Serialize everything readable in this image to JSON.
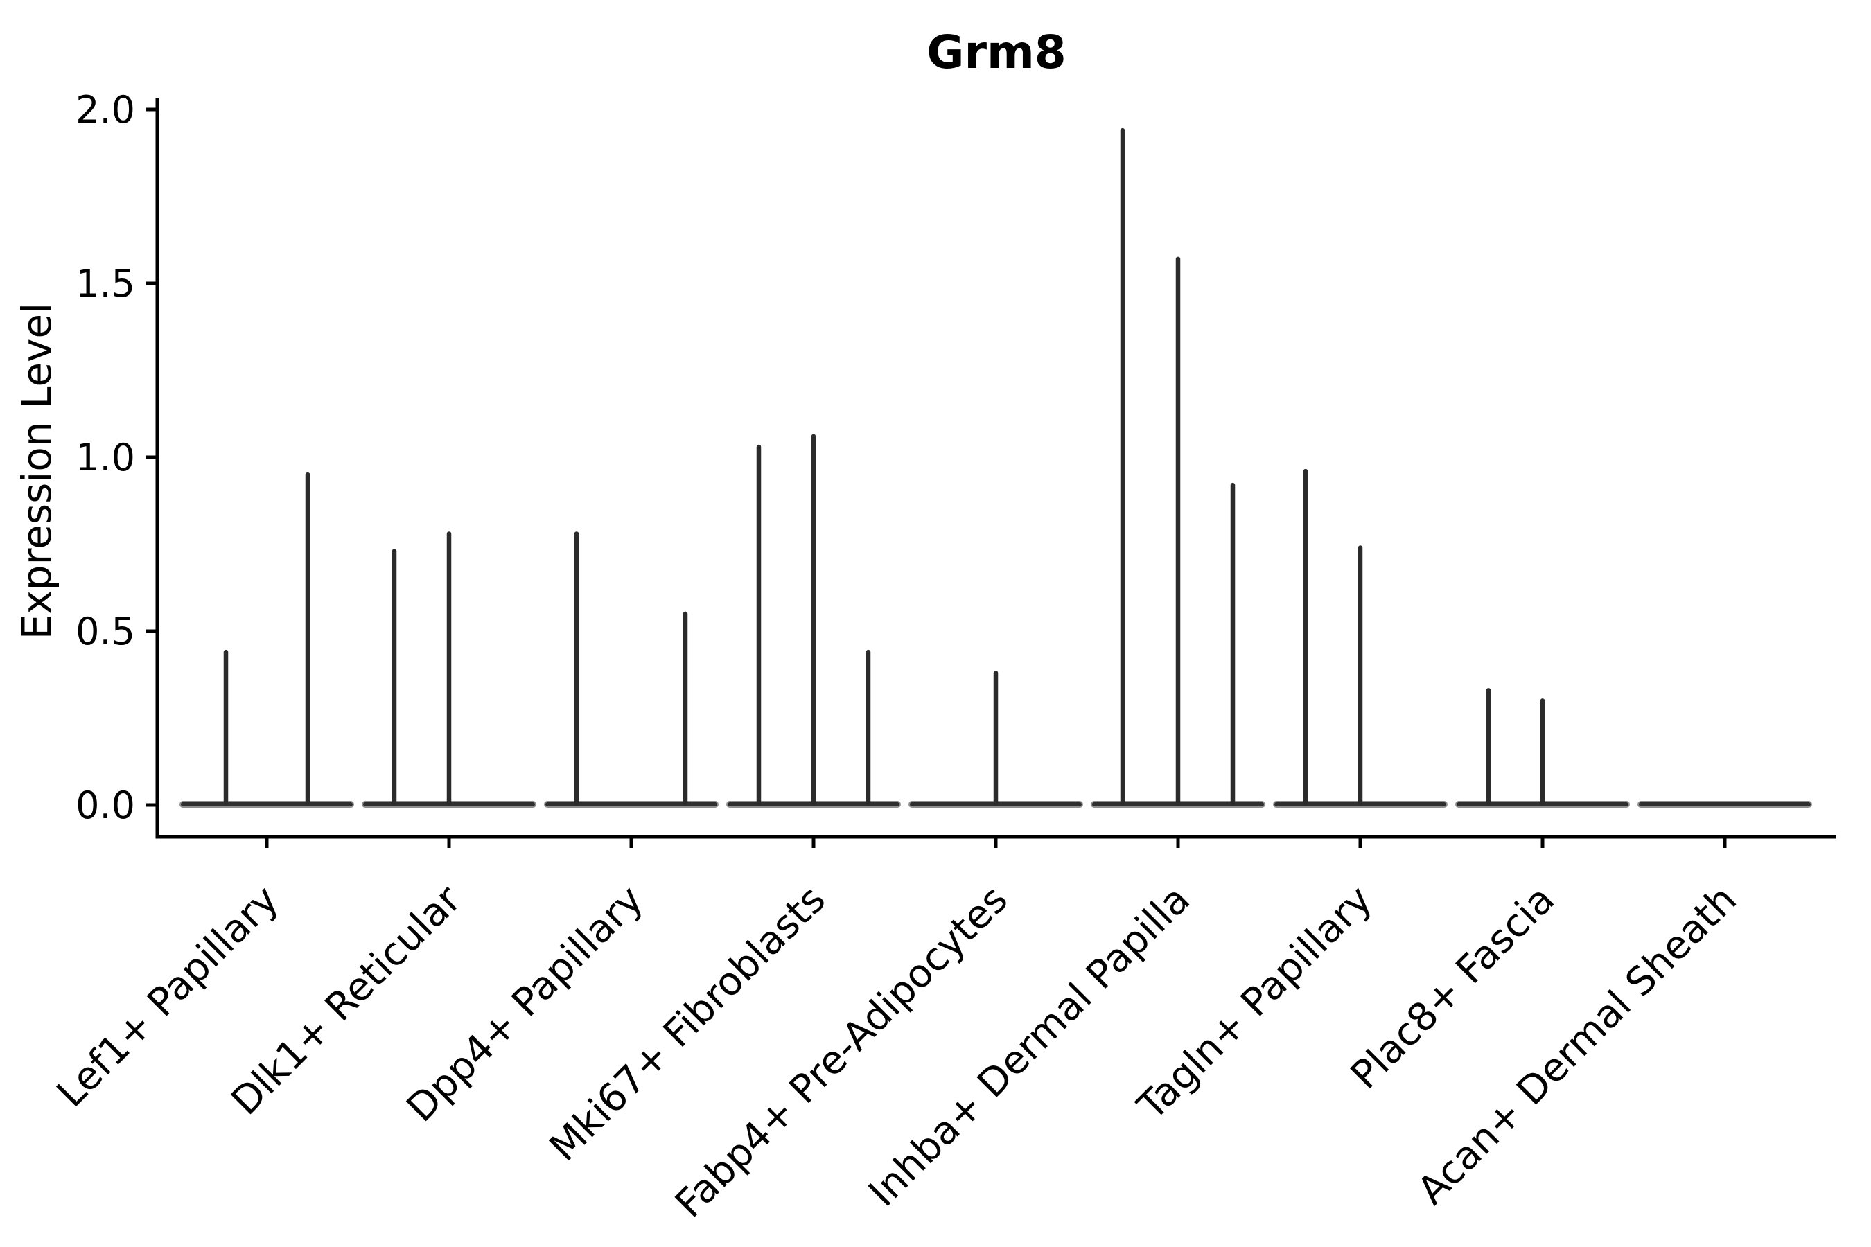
{
  "chart_data": {
    "type": "violin",
    "title": "Grm8",
    "xlabel": "",
    "ylabel": "Expression Level",
    "ylim": [
      0.0,
      2.0
    ],
    "yticks": [
      "0.0",
      "0.5",
      "1.0",
      "1.5",
      "2.0"
    ],
    "grid": false,
    "legend": null,
    "description": "Sparse expression violin plot: each group shows a wide flat base at 0 with thin density spikes rising to the maximum expression of each split violin",
    "categories": [
      "Lef1+ Papillary",
      "Dlk1+ Reticular",
      "Dpp4+ Papillary",
      "Mki67+ Fibroblasts",
      "Fabp4+ Pre-Adipocytes",
      "Inhba+ Dermal Papilla",
      "Tagln+ Papillary",
      "Plac8+ Fascia",
      "Acan+ Dermal Sheath"
    ],
    "groups": [
      {
        "category": "Lef1+ Papillary",
        "violins": [
          {
            "offset": -59,
            "max": 0.44
          },
          {
            "offset": 59,
            "max": 0.95
          }
        ]
      },
      {
        "category": "Dlk1+ Reticular",
        "violins": [
          {
            "offset": -79,
            "max": 0.73
          },
          {
            "offset": 0,
            "max": 0.78
          }
        ]
      },
      {
        "category": "Dpp4+ Papillary",
        "violins": [
          {
            "offset": -79,
            "max": 0.78
          },
          {
            "offset": 78,
            "max": 0.55
          }
        ]
      },
      {
        "category": "Mki67+ Fibroblasts",
        "violins": [
          {
            "offset": -79,
            "max": 1.03
          },
          {
            "offset": 0,
            "max": 1.06
          },
          {
            "offset": 79,
            "max": 0.44
          }
        ]
      },
      {
        "category": "Fabp4+ Pre-Adipocytes",
        "violins": [
          {
            "offset": 0,
            "max": 0.38
          }
        ]
      },
      {
        "category": "Inhba+ Dermal Papilla",
        "violins": [
          {
            "offset": -80,
            "max": 1.94
          },
          {
            "offset": 0,
            "max": 1.57
          },
          {
            "offset": 79,
            "max": 0.92
          }
        ]
      },
      {
        "category": "Tagln+ Papillary",
        "violins": [
          {
            "offset": -79,
            "max": 0.96
          },
          {
            "offset": 0,
            "max": 0.74
          }
        ]
      },
      {
        "category": "Plac8+ Fascia",
        "violins": [
          {
            "offset": -78,
            "max": 0.33
          },
          {
            "offset": 0,
            "max": 0.3
          }
        ]
      },
      {
        "category": "Acan+ Dermal Sheath",
        "violins": []
      }
    ],
    "colors": {
      "violin": "#2b2b2b",
      "violin_base_halo": "#8f8f8f",
      "axis": "#000000",
      "text": "#000000",
      "background": "#ffffff"
    }
  }
}
